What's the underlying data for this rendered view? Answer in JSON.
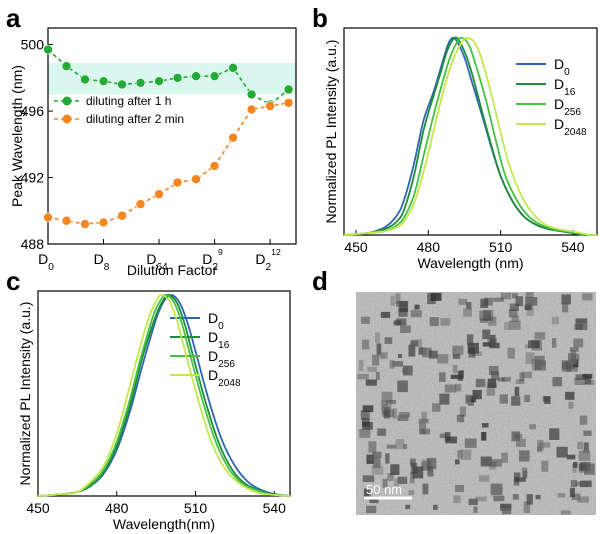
{
  "panels": {
    "a": "a",
    "b": "b",
    "c": "c",
    "d": "d"
  },
  "chart_data": [
    {
      "panel": "a",
      "type": "line",
      "xlabel": "Dilution Factor",
      "ylabel": "Peak Wavelength (nm)",
      "ylim": [
        488,
        501
      ],
      "yticks": [
        488,
        492,
        496,
        500
      ],
      "xticks": [
        {
          "x": 0,
          "base": "D",
          "sub": "0"
        },
        {
          "x": 3,
          "base": "D",
          "sub": "8"
        },
        {
          "x": 6,
          "base": "D",
          "sub": "64"
        },
        {
          "x": 9,
          "base": "D",
          "sub": "2",
          "sup": "9"
        },
        {
          "x": 12,
          "base": "D",
          "sub": "2",
          "sup": "12"
        }
      ],
      "xlim": [
        0,
        13.4
      ],
      "band": {
        "y0": 497,
        "y1": 498.9,
        "color": "#d9f7ee"
      },
      "series": [
        {
          "name": "diluting after 1 h",
          "color": "#23a936",
          "x": [
            0,
            1,
            2,
            3,
            4,
            5,
            6,
            7,
            8,
            9,
            10,
            11,
            12,
            13
          ],
          "y": [
            499.7,
            498.7,
            497.9,
            497.8,
            497.6,
            497.7,
            497.8,
            498.0,
            498.1,
            498.1,
            498.6,
            497.0,
            496.4,
            497.3
          ]
        },
        {
          "name": "diluting after 2 min",
          "color": "#f5861f",
          "x": [
            0,
            1,
            2,
            3,
            4,
            5,
            6,
            7,
            8,
            9,
            10,
            11,
            12,
            13
          ],
          "y": [
            489.6,
            489.4,
            489.2,
            489.3,
            489.7,
            490.4,
            491.0,
            491.7,
            491.9,
            492.7,
            494.4,
            496.1,
            496.3,
            496.5
          ]
        }
      ]
    },
    {
      "panel": "b",
      "type": "line",
      "xlabel": "Wavelength (nm)",
      "ylabel": "Normalized PL Intensity (a.u.)",
      "xlim": [
        445,
        550
      ],
      "ylim": [
        0,
        1.05
      ],
      "xticks": [
        450,
        480,
        510,
        540
      ],
      "series": [
        {
          "name": "D",
          "sub": "0",
          "color": "#2e64b4",
          "x": [
            445,
            455,
            462,
            467,
            470,
            474,
            478,
            482,
            485,
            488,
            490,
            492,
            495,
            498,
            502,
            506,
            510,
            515,
            520,
            525,
            530,
            535,
            540,
            545,
            550
          ],
          "y": [
            0.0,
            0.01,
            0.04,
            0.1,
            0.18,
            0.36,
            0.58,
            0.72,
            0.84,
            0.96,
            1.0,
            0.98,
            0.9,
            0.78,
            0.62,
            0.45,
            0.3,
            0.17,
            0.09,
            0.05,
            0.03,
            0.02,
            0.01,
            0.0,
            0.0
          ]
        },
        {
          "name": "D",
          "sub": "16",
          "color": "#1f8c3b",
          "x": [
            445,
            455,
            462,
            467,
            470,
            474,
            478,
            482,
            485,
            488,
            491,
            493,
            496,
            499,
            502,
            506,
            510,
            515,
            520,
            525,
            530,
            535,
            540,
            545,
            550
          ],
          "y": [
            0.0,
            0.01,
            0.03,
            0.07,
            0.13,
            0.3,
            0.53,
            0.7,
            0.82,
            0.94,
            1.0,
            0.98,
            0.9,
            0.78,
            0.64,
            0.46,
            0.3,
            0.17,
            0.09,
            0.05,
            0.03,
            0.02,
            0.01,
            0.0,
            0.0
          ]
        },
        {
          "name": "D",
          "sub": "256",
          "color": "#44c141",
          "x": [
            445,
            455,
            462,
            467,
            470,
            474,
            478,
            482,
            486,
            489,
            492,
            494,
            497,
            500,
            504,
            508,
            512,
            517,
            522,
            527,
            532,
            537,
            542,
            546,
            550
          ],
          "y": [
            0.0,
            0.01,
            0.02,
            0.05,
            0.09,
            0.2,
            0.4,
            0.6,
            0.78,
            0.9,
            0.98,
            1.0,
            0.96,
            0.85,
            0.68,
            0.48,
            0.3,
            0.17,
            0.09,
            0.05,
            0.03,
            0.02,
            0.01,
            0.0,
            0.0
          ]
        },
        {
          "name": "D",
          "sub": "2048",
          "color": "#c3e84a",
          "x": [
            445,
            455,
            462,
            467,
            470,
            474,
            478,
            482,
            486,
            490,
            494,
            496,
            499,
            502,
            506,
            510,
            514,
            519,
            524,
            529,
            534,
            539,
            543,
            547,
            550
          ],
          "y": [
            0.0,
            0.01,
            0.02,
            0.04,
            0.07,
            0.16,
            0.32,
            0.52,
            0.72,
            0.88,
            0.98,
            1.0,
            0.98,
            0.9,
            0.72,
            0.52,
            0.34,
            0.19,
            0.1,
            0.05,
            0.03,
            0.02,
            0.01,
            0.0,
            0.0
          ]
        }
      ]
    },
    {
      "panel": "c",
      "type": "line",
      "xlabel": "Wavelength(nm)",
      "ylabel": "Normalized PL Intensity (a.u.)",
      "xlim": [
        450,
        546
      ],
      "ylim": [
        0,
        1.02
      ],
      "xticks": [
        450,
        480,
        510,
        540
      ],
      "series": [
        {
          "name": "D",
          "sub": "0",
          "color": "#2e64b4",
          "x": [
            450,
            460,
            465,
            470,
            475,
            480,
            485,
            490,
            495,
            498,
            501,
            504,
            507,
            510,
            515,
            520,
            525,
            530,
            535,
            540,
            546
          ],
          "y": [
            0.0,
            0.01,
            0.02,
            0.05,
            0.11,
            0.23,
            0.42,
            0.66,
            0.88,
            0.97,
            1.0,
            0.96,
            0.86,
            0.72,
            0.48,
            0.28,
            0.15,
            0.07,
            0.03,
            0.01,
            0.0
          ]
        },
        {
          "name": "D",
          "sub": "16",
          "color": "#1f8c3b",
          "x": [
            450,
            460,
            465,
            470,
            475,
            480,
            485,
            490,
            495,
            498,
            500,
            503,
            506,
            509,
            514,
            519,
            524,
            529,
            534,
            539,
            546
          ],
          "y": [
            0.0,
            0.01,
            0.02,
            0.05,
            0.12,
            0.25,
            0.45,
            0.7,
            0.9,
            0.98,
            1.0,
            0.96,
            0.85,
            0.7,
            0.46,
            0.26,
            0.13,
            0.06,
            0.03,
            0.01,
            0.0
          ]
        },
        {
          "name": "D",
          "sub": "256",
          "color": "#44c141",
          "x": [
            450,
            460,
            465,
            470,
            475,
            480,
            485,
            489,
            494,
            497,
            499,
            502,
            505,
            508,
            513,
            518,
            523,
            528,
            533,
            538,
            546
          ],
          "y": [
            0.0,
            0.01,
            0.02,
            0.06,
            0.13,
            0.27,
            0.48,
            0.68,
            0.9,
            0.98,
            1.0,
            0.96,
            0.85,
            0.7,
            0.46,
            0.26,
            0.13,
            0.06,
            0.03,
            0.01,
            0.0
          ]
        },
        {
          "name": "D",
          "sub": "2048",
          "color": "#c3e84a",
          "x": [
            450,
            460,
            465,
            470,
            475,
            480,
            484,
            488,
            492,
            495,
            497,
            500,
            503,
            506,
            511,
            516,
            521,
            526,
            531,
            536,
            546
          ],
          "y": [
            0.0,
            0.01,
            0.02,
            0.07,
            0.15,
            0.31,
            0.5,
            0.7,
            0.88,
            0.97,
            1.0,
            0.97,
            0.87,
            0.72,
            0.48,
            0.27,
            0.14,
            0.07,
            0.03,
            0.01,
            0.0
          ]
        }
      ]
    }
  ],
  "tem": {
    "scale_bar_label": "50 nm",
    "background": "#9b9b9b"
  }
}
